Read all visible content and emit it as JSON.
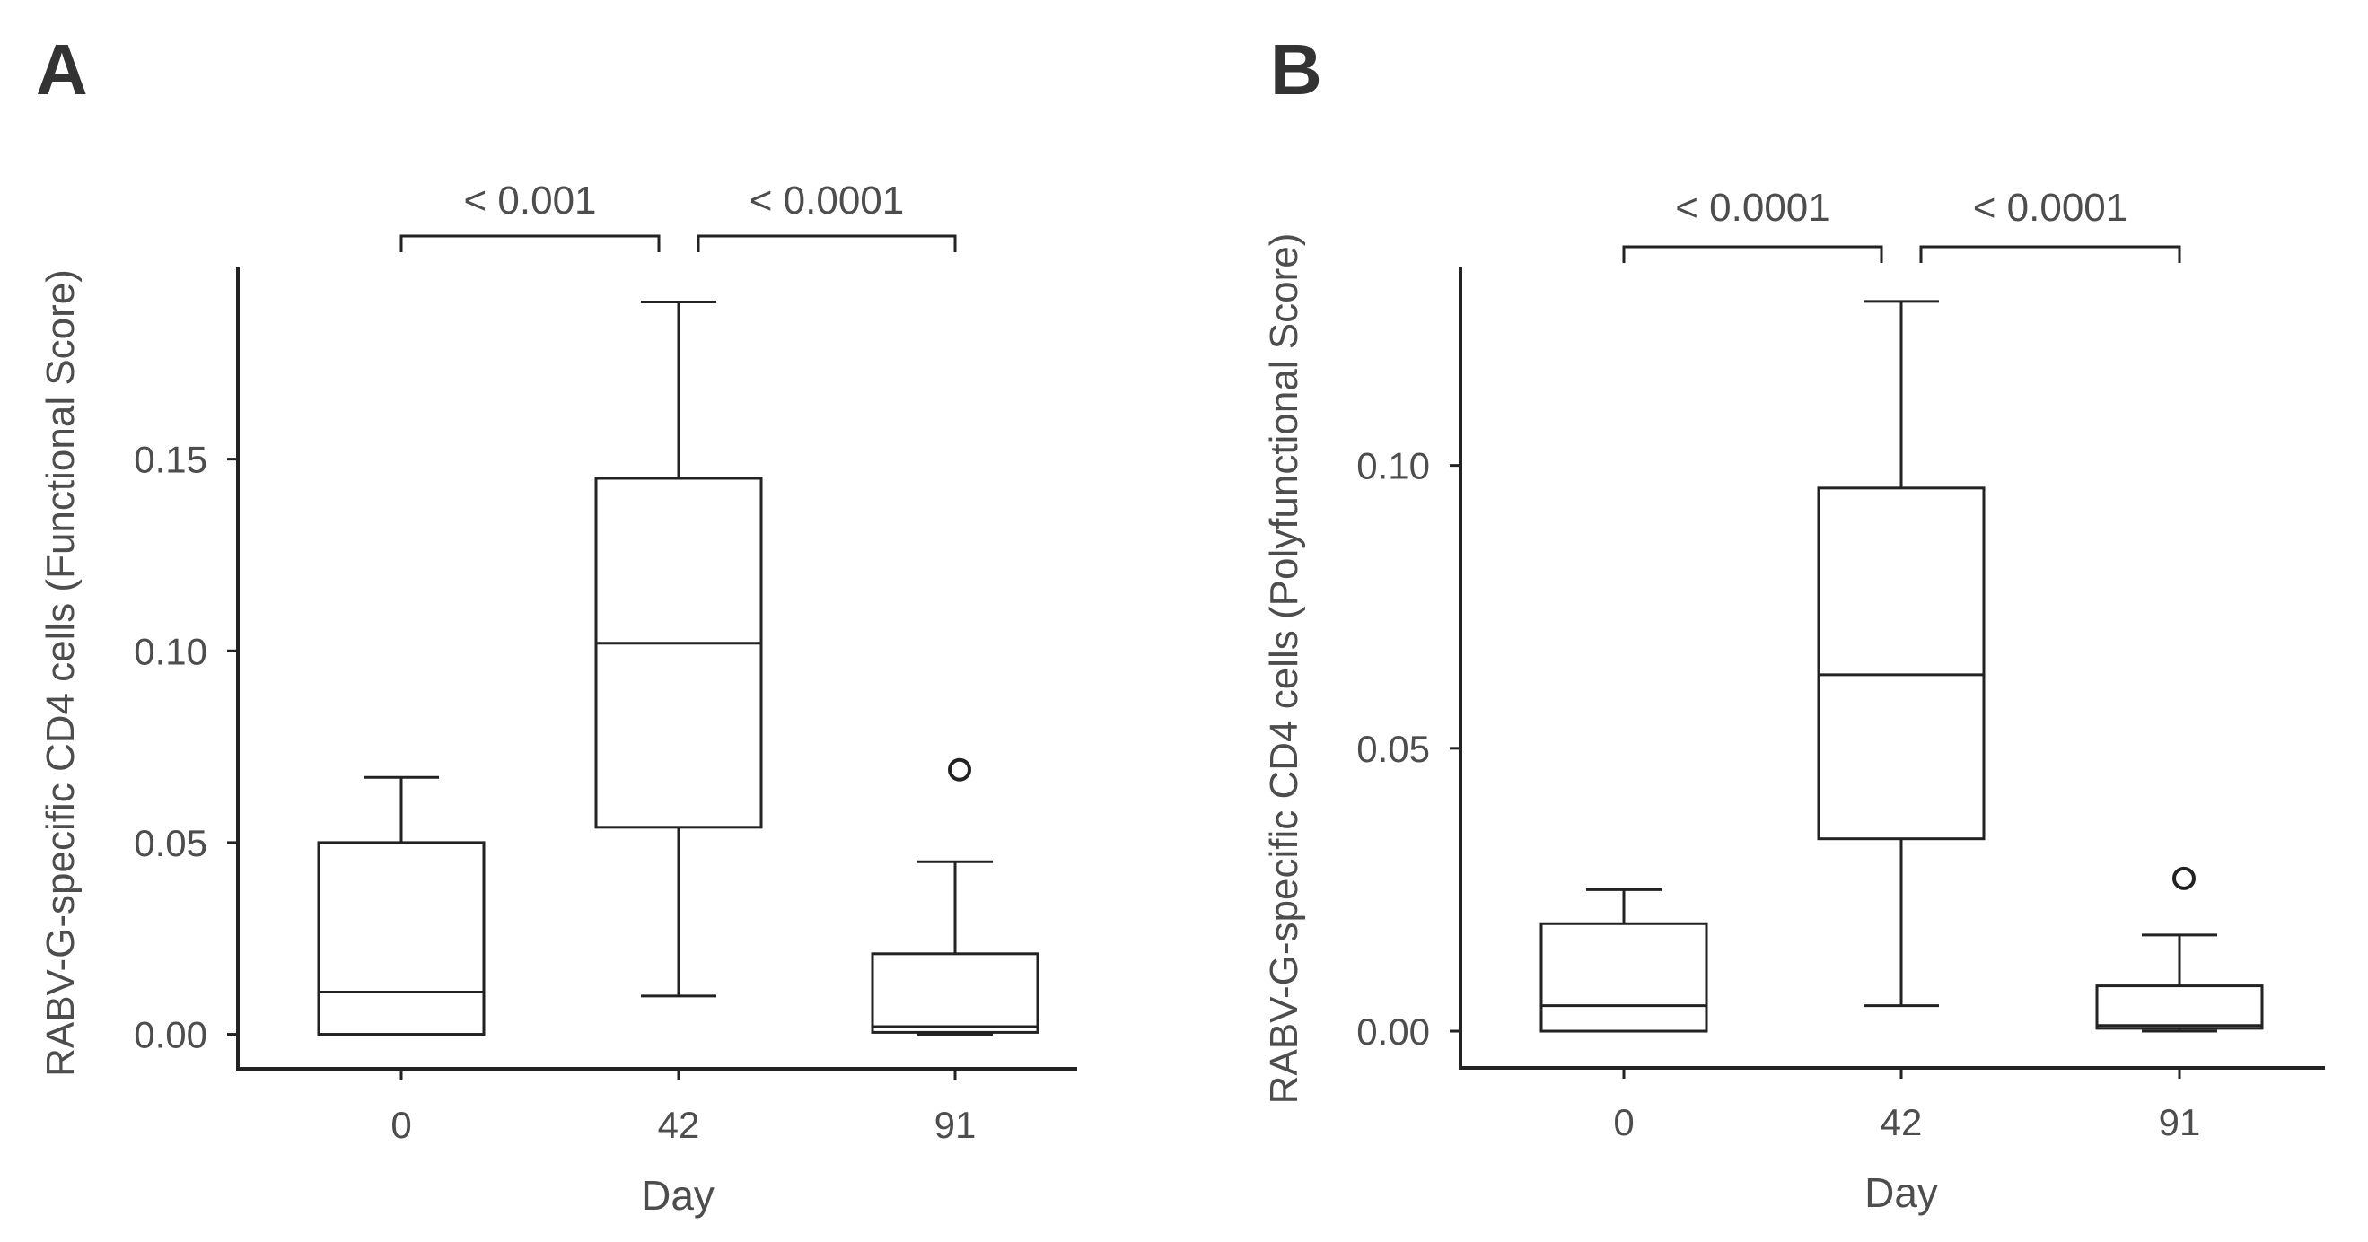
{
  "chart_data": [
    {
      "panel_label": "A",
      "type": "box",
      "xlabel": "Day",
      "ylabel": "RABV-G-specific CD4 cells (Functional Score)",
      "categories": [
        "0",
        "42",
        "91"
      ],
      "ylim": [
        -0.009,
        0.2
      ],
      "yticks": [
        0.0,
        0.05,
        0.1,
        0.15
      ],
      "ytick_labels": [
        "0.00",
        "0.05",
        "0.10",
        "0.15"
      ],
      "boxes": [
        {
          "category": "0",
          "whisker_low": 0.0,
          "q1": 0.0,
          "median": 0.011,
          "q3": 0.05,
          "whisker_high": 0.067,
          "outliers": []
        },
        {
          "category": "42",
          "whisker_low": 0.01,
          "q1": 0.054,
          "median": 0.102,
          "q3": 0.145,
          "whisker_high": 0.191,
          "outliers": []
        },
        {
          "category": "91",
          "whisker_low": 0.0,
          "q1": 0.0005,
          "median": 0.002,
          "q3": 0.021,
          "whisker_high": 0.045,
          "outliers": [
            0.069
          ]
        }
      ],
      "significance": [
        {
          "from": "0",
          "to": "42",
          "label": "< 0.001"
        },
        {
          "from": "42",
          "to": "91",
          "label": "< 0.0001"
        }
      ]
    },
    {
      "panel_label": "B",
      "type": "box",
      "xlabel": "Day",
      "ylabel": "RABV-G-specific CD4 cells (Polyfunctional Score)",
      "categories": [
        "0",
        "42",
        "91"
      ],
      "ylim": [
        -0.0065,
        0.135
      ],
      "yticks": [
        0.0,
        0.05,
        0.1
      ],
      "ytick_labels": [
        "0.00",
        "0.05",
        "0.10"
      ],
      "boxes": [
        {
          "category": "0",
          "whisker_low": 0.0,
          "q1": 0.0,
          "median": 0.0045,
          "q3": 0.019,
          "whisker_high": 0.025,
          "outliers": []
        },
        {
          "category": "42",
          "whisker_low": 0.0045,
          "q1": 0.034,
          "median": 0.063,
          "q3": 0.096,
          "whisker_high": 0.129,
          "outliers": []
        },
        {
          "category": "91",
          "whisker_low": 0.0,
          "q1": 0.0005,
          "median": 0.001,
          "q3": 0.008,
          "whisker_high": 0.017,
          "outliers": [
            0.027
          ]
        }
      ],
      "significance": [
        {
          "from": "0",
          "to": "42",
          "label": "< 0.0001"
        },
        {
          "from": "42",
          "to": "91",
          "label": "< 0.0001"
        }
      ]
    }
  ]
}
